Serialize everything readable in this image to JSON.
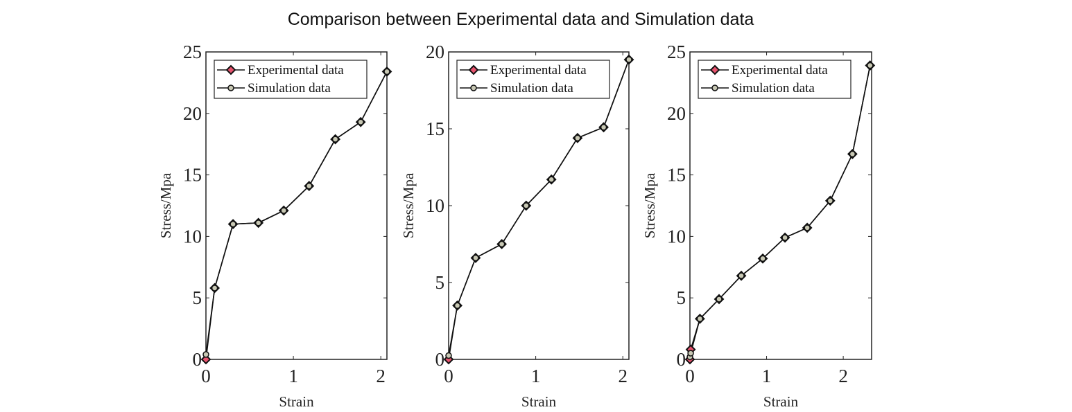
{
  "chart_data": [
    {
      "type": "line",
      "title": "Comparison between Experimental data and Simulation data",
      "xlabel": "Strain",
      "ylabel": "Stress/Mpa",
      "xlim": [
        0,
        2.07
      ],
      "ylim": [
        0,
        25
      ],
      "xticks": [
        "0",
        "1",
        "2"
      ],
      "yticks": [
        "0",
        "5",
        "10",
        "15",
        "20",
        "25"
      ],
      "legend_position": "top-left",
      "series": [
        {
          "name": "Experimental data",
          "marker": "diamond",
          "color": "#e8536e",
          "x": [
            0,
            0.1,
            0.31,
            0.6,
            0.89,
            1.18,
            1.48,
            1.77,
            2.07
          ],
          "y": [
            0,
            5.8,
            11.0,
            11.1,
            12.1,
            14.1,
            17.9,
            19.3,
            23.4
          ]
        },
        {
          "name": "Simulation data",
          "marker": "circle",
          "color": "#c8c8b4",
          "x": [
            0,
            0.1,
            0.31,
            0.6,
            0.89,
            1.18,
            1.48,
            1.77,
            2.07
          ],
          "y": [
            0.4,
            5.8,
            11.0,
            11.1,
            12.1,
            14.1,
            17.9,
            19.3,
            23.4
          ]
        }
      ]
    },
    {
      "type": "line",
      "xlabel": "Strain",
      "ylabel": "Stress/Mpa",
      "xlim": [
        0,
        2.07
      ],
      "ylim": [
        0,
        20
      ],
      "xticks": [
        "0",
        "1",
        "2"
      ],
      "yticks": [
        "0",
        "5",
        "10",
        "15",
        "20"
      ],
      "legend_position": "top-left",
      "series": [
        {
          "name": "Experimental data",
          "marker": "diamond",
          "color": "#e8536e",
          "x": [
            0,
            0.1,
            0.31,
            0.61,
            0.89,
            1.18,
            1.48,
            1.78,
            2.07
          ],
          "y": [
            0,
            3.5,
            6.6,
            7.5,
            10.0,
            11.7,
            14.4,
            15.1,
            19.5
          ]
        },
        {
          "name": "Simulation data",
          "marker": "circle",
          "color": "#c8c8b4",
          "x": [
            0,
            0.1,
            0.31,
            0.61,
            0.89,
            1.18,
            1.48,
            1.78,
            2.07
          ],
          "y": [
            0.25,
            3.5,
            6.6,
            7.5,
            10.0,
            11.7,
            14.4,
            15.1,
            19.5
          ]
        }
      ]
    },
    {
      "type": "line",
      "xlabel": "Strain",
      "ylabel": "Stress/Mpa",
      "xlim": [
        0,
        2.37
      ],
      "ylim": [
        0,
        25
      ],
      "xticks": [
        "0",
        "1",
        "2"
      ],
      "yticks": [
        "0",
        "5",
        "10",
        "15",
        "20",
        "25"
      ],
      "legend_position": "top-left",
      "series": [
        {
          "name": "Experimental data",
          "marker": "diamond",
          "color": "#e8536e",
          "x": [
            0,
            0.01,
            0.13,
            0.38,
            0.67,
            0.95,
            1.24,
            1.53,
            1.83,
            2.12,
            2.35
          ],
          "y": [
            0,
            0.8,
            3.3,
            4.9,
            6.8,
            8.2,
            9.9,
            10.7,
            12.9,
            16.7,
            23.9
          ]
        },
        {
          "name": "Simulation data",
          "marker": "circle",
          "color": "#c8c8b4",
          "x": [
            0,
            0.01,
            0.13,
            0.38,
            0.67,
            0.95,
            1.24,
            1.53,
            1.83,
            2.12,
            2.35
          ],
          "y": [
            0.2,
            0.5,
            3.3,
            4.9,
            6.8,
            8.2,
            9.9,
            10.7,
            12.9,
            16.7,
            23.9
          ]
        }
      ]
    }
  ]
}
